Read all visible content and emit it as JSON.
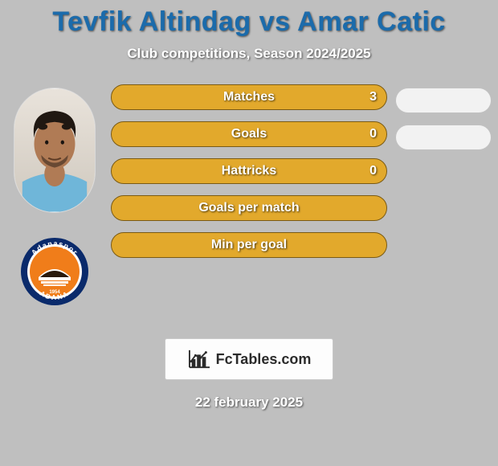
{
  "title": "Tevfik Altindag vs Amar Catic",
  "subtitle": "Club competitions, Season 2024/2025",
  "title_color": "#1b6bab",
  "subtitle_color": "#ffffff",
  "date_text": "22 february 2025",
  "date_color": "#ffffff",
  "background_color": "#bfbfbf",
  "bars": [
    {
      "label": "Matches",
      "left_value": "3",
      "show_right_pill": true
    },
    {
      "label": "Goals",
      "left_value": "0",
      "show_right_pill": true
    },
    {
      "label": "Hattricks",
      "left_value": "0",
      "show_right_pill": false
    },
    {
      "label": "Goals per match",
      "left_value": "",
      "show_right_pill": false
    },
    {
      "label": "Min per goal",
      "left_value": "",
      "show_right_pill": false
    }
  ],
  "bar_style": {
    "fill": "#e2a92c",
    "border": "#7a5a14",
    "label_color": "#ffffff"
  },
  "right_pill_fill": "#f2f2f2",
  "logo_text": "FcTables.com",
  "club": {
    "name": "Adanaspor",
    "ring_color": "#0a2a6b",
    "inner_color": "#f07d1a",
    "text_color": "#ffffff"
  },
  "player_photo": {
    "bg_top": "#e9e3db",
    "bg_bottom": "#cfc8be",
    "skin": "#b07b55",
    "hair": "#201812",
    "shirt": "#6fb6d9"
  }
}
